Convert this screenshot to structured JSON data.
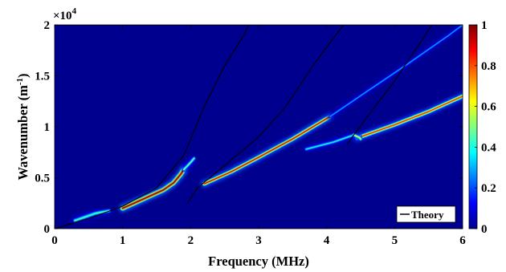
{
  "chart_data": {
    "type": "heatmap",
    "title": "",
    "xlabel": "Frequency (MHz)",
    "ylabel_main": "Wavenumber (m",
    "ylabel_sup": "-1",
    "ylabel_close": ")",
    "xlim": [
      0,
      6
    ],
    "ylim": [
      0,
      20000
    ],
    "x_ticks": [
      "0",
      "1",
      "2",
      "3",
      "4",
      "5",
      "6"
    ],
    "y_ticks": [
      "0",
      "0.5",
      "1",
      "1.5",
      "2"
    ],
    "y_exponent_base": "×10",
    "y_exponent_power": "4",
    "colorbar": {
      "range": [
        0,
        1
      ],
      "ticks": [
        "0",
        "0.2",
        "0.4",
        "0.6",
        "0.8",
        "1"
      ],
      "colormap": "jet"
    },
    "background_color": "#00008f",
    "legend": {
      "entries": [
        "Theory"
      ],
      "position": "bottom-right",
      "line_color": "#000000"
    },
    "theory_curves": [
      {
        "name": "mode-1",
        "points": [
          [
            0,
            0
          ],
          [
            0.5,
            1000
          ],
          [
            1.0,
            2200
          ],
          [
            1.5,
            4000
          ],
          [
            1.9,
            7200
          ],
          [
            2.2,
            12000
          ],
          [
            2.5,
            16000
          ],
          [
            2.8,
            19200
          ],
          [
            2.85,
            20000
          ]
        ]
      },
      {
        "name": "mode-2",
        "points": [
          [
            1.95,
            2500
          ],
          [
            2.1,
            4000
          ],
          [
            2.5,
            6200
          ],
          [
            3.0,
            9000
          ],
          [
            3.4,
            12000
          ],
          [
            3.8,
            16000
          ],
          [
            4.1,
            18700
          ],
          [
            4.25,
            20000
          ]
        ]
      },
      {
        "name": "mode-3",
        "points": [
          [
            4.3,
            8300
          ],
          [
            4.6,
            11000
          ],
          [
            5.0,
            14500
          ],
          [
            5.3,
            17500
          ],
          [
            5.55,
            20000
          ]
        ]
      }
    ],
    "intensity_branches": [
      {
        "name": "branch-1a",
        "points": [
          [
            0.3,
            800
          ],
          [
            0.6,
            1500
          ],
          [
            0.8,
            1750
          ]
        ],
        "peak": 0.45,
        "width": 5
      },
      {
        "name": "branch-1b",
        "points": [
          [
            1.0,
            2000
          ],
          [
            1.3,
            2900
          ],
          [
            1.6,
            3800
          ],
          [
            1.75,
            4500
          ],
          [
            1.85,
            5300
          ],
          [
            1.9,
            5800
          ]
        ],
        "peak": 1.0,
        "width": 6
      },
      {
        "name": "branch-1c",
        "points": [
          [
            1.9,
            5800
          ],
          [
            2.0,
            6500
          ],
          [
            2.05,
            6900
          ]
        ],
        "peak": 0.5,
        "width": 4
      },
      {
        "name": "branch-2",
        "points": [
          [
            2.2,
            4400
          ],
          [
            2.6,
            5600
          ],
          [
            3.0,
            7000
          ],
          [
            3.5,
            8800
          ],
          [
            3.9,
            10400
          ],
          [
            4.05,
            11000
          ]
        ],
        "peak": 0.92,
        "width": 5
      },
      {
        "name": "branch-2b",
        "points": [
          [
            3.7,
            7800
          ],
          [
            4.1,
            8500
          ],
          [
            4.4,
            9200
          ]
        ],
        "peak": 0.4,
        "width": 4
      },
      {
        "name": "branch-2c",
        "points": [
          [
            4.05,
            11000
          ],
          [
            4.6,
            13500
          ],
          [
            5.2,
            16200
          ],
          [
            5.8,
            19000
          ],
          [
            6.0,
            20000
          ]
        ],
        "peak": 0.3,
        "width": 3
      },
      {
        "name": "branch-3",
        "points": [
          [
            4.45,
            8900
          ],
          [
            5.0,
            10200
          ],
          [
            5.5,
            11500
          ],
          [
            6.0,
            13000
          ]
        ],
        "peak": 0.85,
        "width": 5
      },
      {
        "name": "branch-3b",
        "points": [
          [
            4.4,
            9200
          ],
          [
            4.48,
            8950
          ],
          [
            4.5,
            8800
          ]
        ],
        "peak": 0.6,
        "width": 4
      }
    ]
  }
}
